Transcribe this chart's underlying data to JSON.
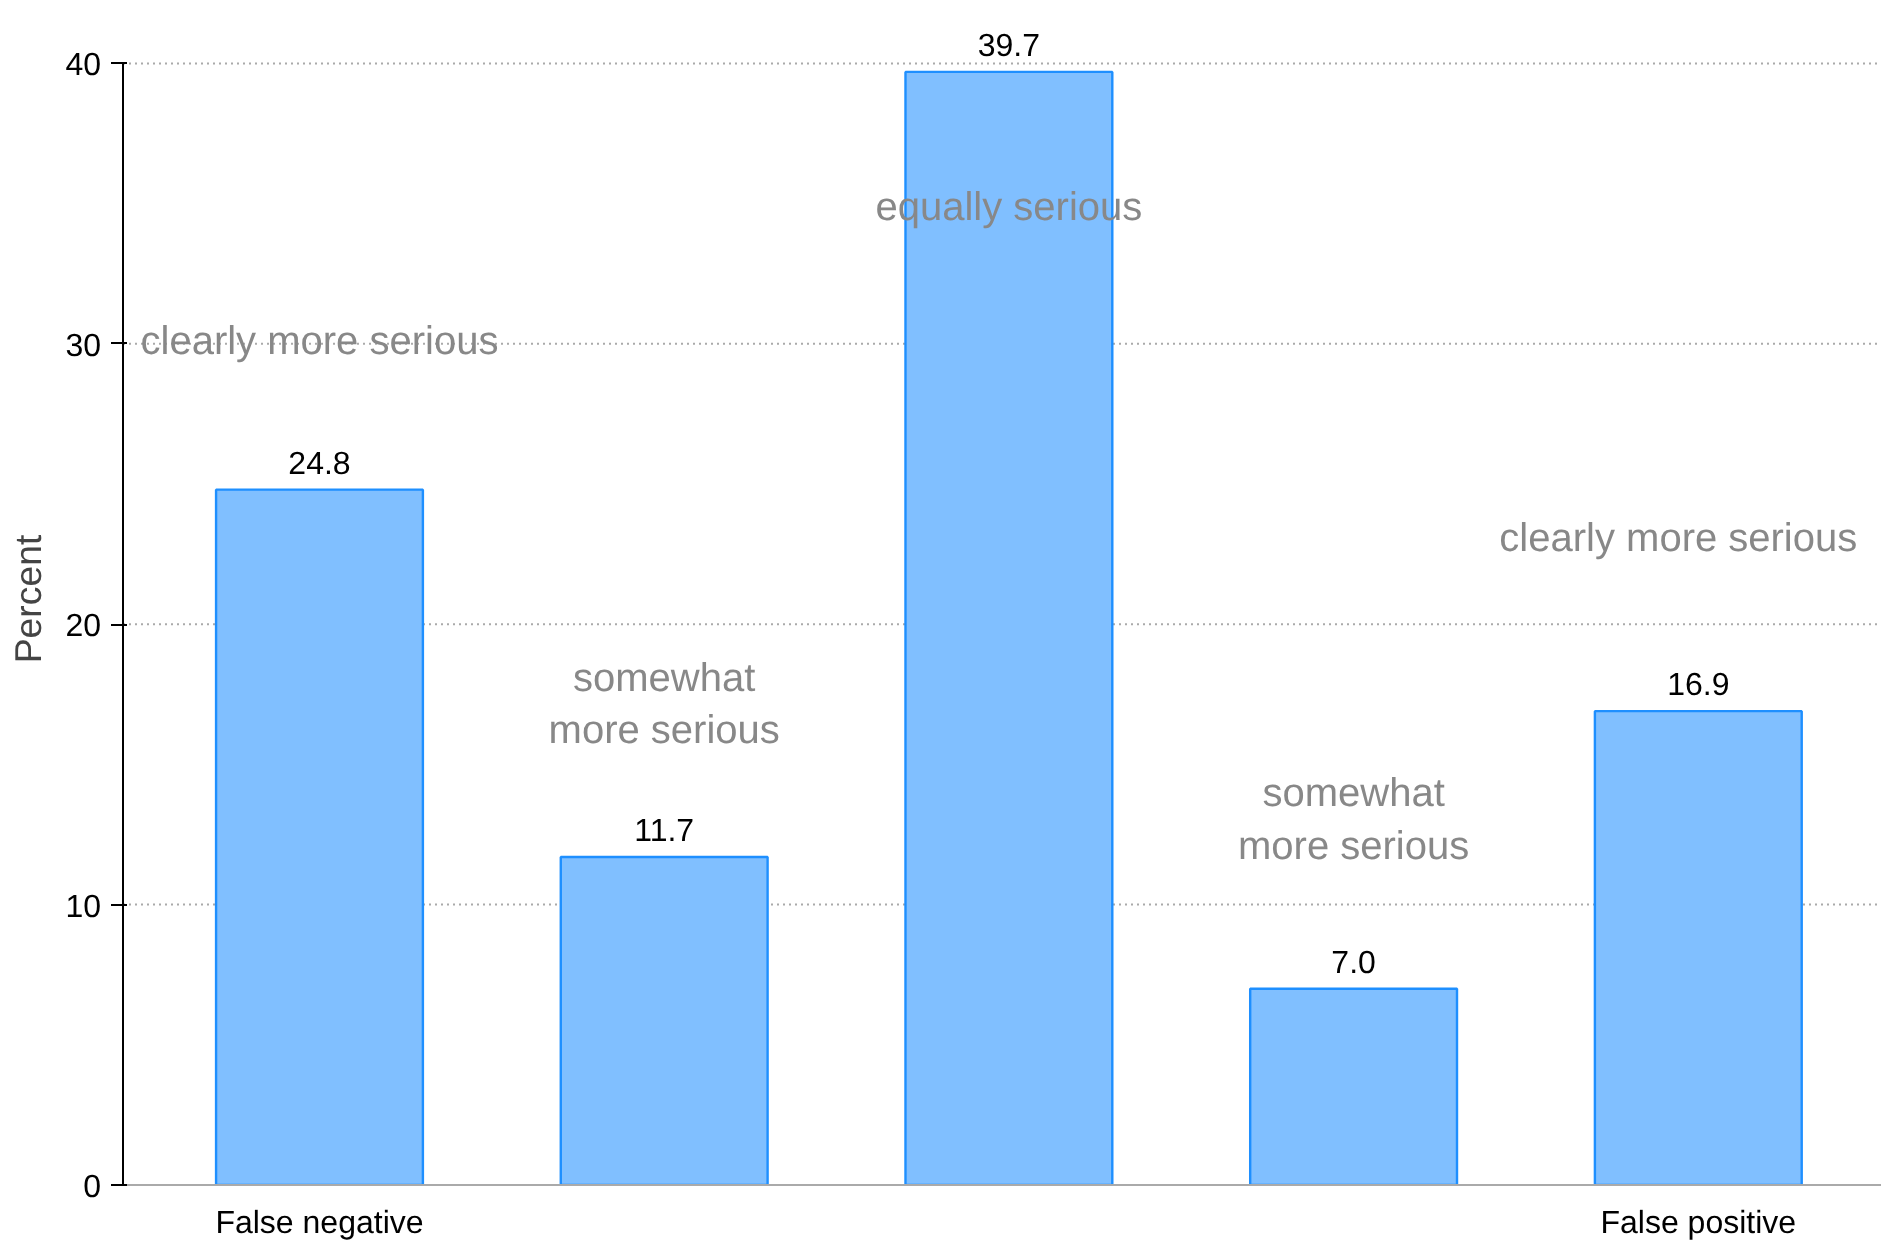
{
  "chart_data": {
    "type": "bar",
    "categories": [
      "False negative",
      null,
      null,
      null,
      "False positive"
    ],
    "values": [
      24.8,
      11.7,
      39.7,
      7.0,
      16.9
    ],
    "value_labels": [
      "24.8",
      "11.7",
      "39.7",
      "7.0",
      "16.9"
    ],
    "color": "#80bfff",
    "ylabel": "Percent",
    "ylim": [
      0,
      40
    ],
    "yticks": [
      0,
      10,
      20,
      30,
      40
    ],
    "grid": "y",
    "annotations": [
      "clearly more serious",
      "somewhat\nmore serious",
      "equally serious",
      "somewhat\nmore serious",
      "clearly more serious"
    ]
  }
}
